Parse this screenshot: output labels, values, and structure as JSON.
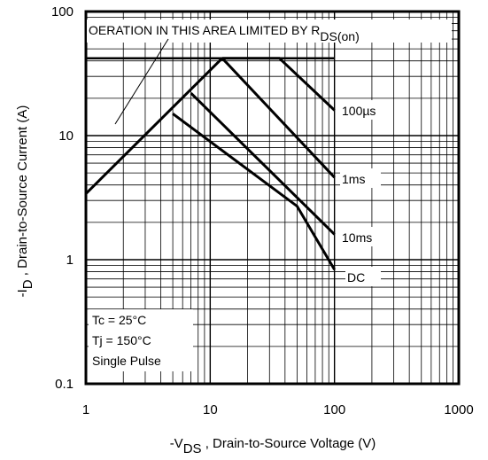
{
  "chart_data": {
    "type": "line",
    "scale": {
      "x": "log",
      "y": "log"
    },
    "xlim": [
      1,
      1000
    ],
    "ylim": [
      0.1,
      100
    ],
    "grid": true,
    "x_tick_labels": [
      "1",
      "10",
      "100",
      "1000"
    ],
    "y_tick_labels": [
      "0.1",
      "1",
      "10",
      "100"
    ],
    "xlabel": {
      "prefix": "-V",
      "subscript": "DS",
      "suffix": " , Drain-to-Source Voltage (V)"
    },
    "ylabel": {
      "prefix": "-I",
      "subscript": "D",
      "suffix": " , Drain-to-Source Current (A)"
    },
    "annotation": {
      "text": "OERATION IN THIS AREA LIMITED BY R",
      "subscript": "DS(on)"
    },
    "conditions": [
      "Tc = 25°C",
      "Tj = 150°C",
      "Single Pulse"
    ],
    "boundaries": {
      "rds_on_limit": [
        {
          "x": 1,
          "y": 3.4
        },
        {
          "x": 12.5,
          "y": 42
        }
      ],
      "current_limit": [
        {
          "x": 1,
          "y": 42
        },
        {
          "x": 100,
          "y": 42
        }
      ]
    },
    "series": [
      {
        "name": "100µs",
        "points": [
          {
            "x": 12.5,
            "y": 42
          },
          {
            "x": 36,
            "y": 42
          },
          {
            "x": 100,
            "y": 16
          }
        ]
      },
      {
        "name": "1ms",
        "points": [
          {
            "x": 12.5,
            "y": 42
          },
          {
            "x": 100,
            "y": 4.6
          }
        ]
      },
      {
        "name": "10ms",
        "points": [
          {
            "x": 7,
            "y": 22
          },
          {
            "x": 100,
            "y": 1.6
          }
        ]
      },
      {
        "name": "DC",
        "points": [
          {
            "x": 5,
            "y": 15
          },
          {
            "x": 50,
            "y": 2.7
          },
          {
            "x": 100,
            "y": 0.83
          }
        ]
      }
    ]
  }
}
